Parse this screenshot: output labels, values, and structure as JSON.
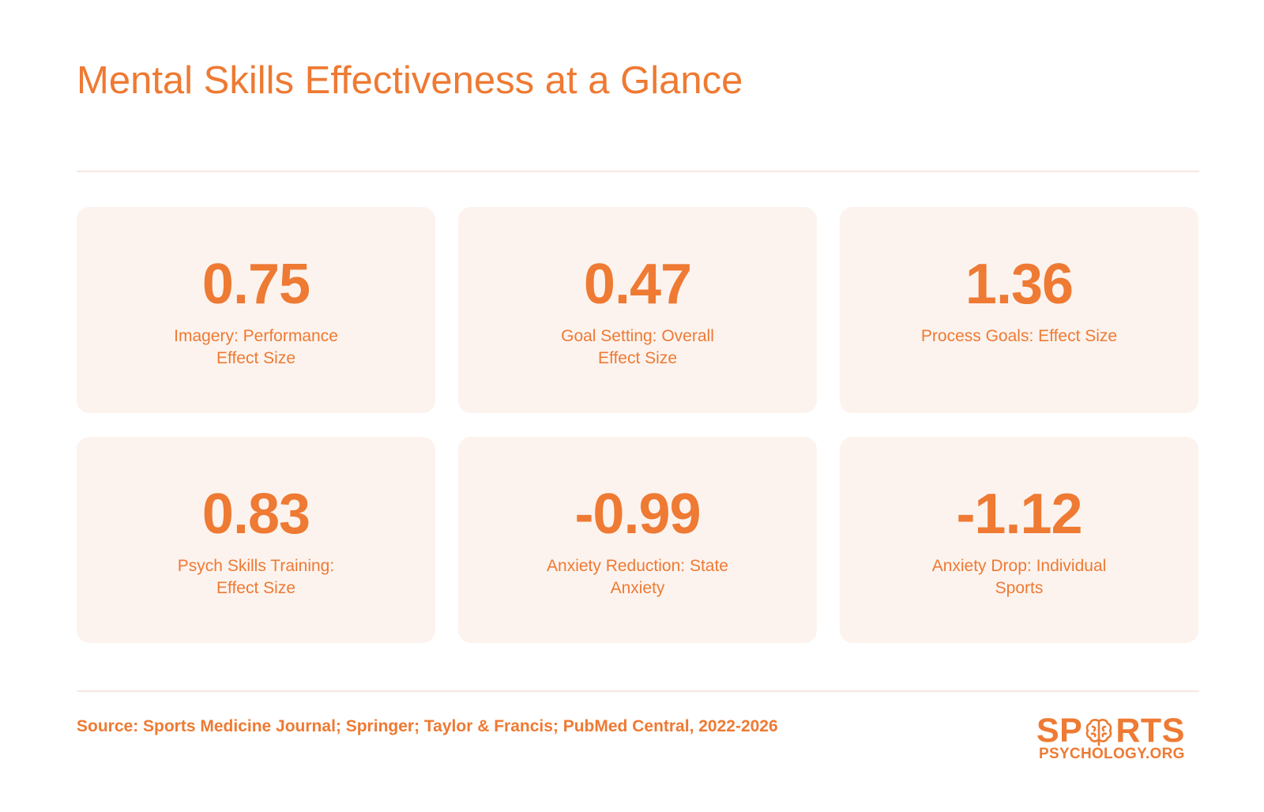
{
  "header": {
    "title": "Mental Skills Effectiveness at a Glance"
  },
  "stats": [
    {
      "value": "0.75",
      "label": "Imagery: Performance Effect Size"
    },
    {
      "value": "0.47",
      "label": "Goal Setting: Overall Effect Size"
    },
    {
      "value": "1.36",
      "label": "Process Goals: Effect Size"
    },
    {
      "value": "0.83",
      "label": "Psych Skills Training: Effect Size"
    },
    {
      "value": "-0.99",
      "label": "Anxiety Reduction: State Anxiety"
    },
    {
      "value": "-1.12",
      "label": "Anxiety Drop: Individual Sports"
    }
  ],
  "footer": {
    "source": "Source: Sports Medicine Journal; Springer; Taylor & Francis; PubMed Central, 2022-2026"
  },
  "logo": {
    "top_left": "SP",
    "top_right": "RTS",
    "bottom": "PSYCHOLOGY.ORG",
    "icon": "brain-icon"
  },
  "colors": {
    "accent": "#ee7a33",
    "card_bg": "#fcf3ee",
    "rule": "#f6e7df",
    "background": "#ffffff"
  }
}
